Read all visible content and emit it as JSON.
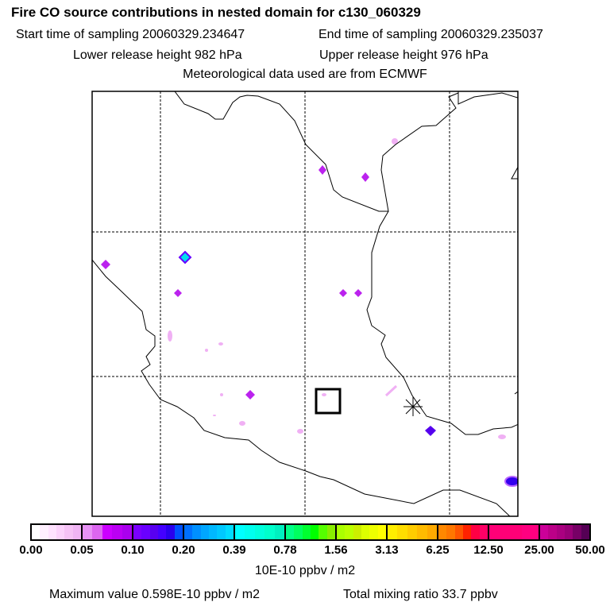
{
  "header": {
    "title": "Fire CO source contributions in nested domain for c130_060329",
    "start": "Start time of sampling 20060329.234647",
    "end": "End time of sampling 20060329.235037",
    "lower": "Lower release height  982 hPa",
    "upper": "Upper release height  976 hPa",
    "met": "Meteorological data used are from ECMWF"
  },
  "colorbar": {
    "ticks": [
      "0.00",
      "0.05",
      "0.10",
      "0.20",
      "0.39",
      "0.78",
      "1.56",
      "3.13",
      "6.25",
      "12.50",
      "25.00",
      "50.00"
    ],
    "segments": [
      [
        "#ffffff",
        "#fff0ff",
        "#ffe2ff",
        "#fcd2fc",
        "#f6c2f6",
        "#f0b4f4"
      ],
      [
        "#e892f6",
        "#dc66f0",
        "#cc00ff",
        "#bb00f4",
        "#aa00ee"
      ],
      [
        "#7a00ff",
        "#6a00ff",
        "#5800f0",
        "#4400ff",
        "#2a00ee",
        "#0050ff"
      ],
      [
        "#0070ff",
        "#0090ff",
        "#00a6ff",
        "#00b8ff",
        "#00c8ff",
        "#00dcff"
      ],
      [
        "#00ffff",
        "#00ffee",
        "#00ffdd",
        "#00ffcc",
        "#00f0c0"
      ],
      [
        "#00ff88",
        "#00ff60",
        "#00ff30",
        "#00ff00",
        "#55ff00",
        "#88ee00"
      ],
      [
        "#aaff00",
        "#bbff00",
        "#ccee00",
        "#ddff00",
        "#eeff00",
        "#ffff00"
      ],
      [
        "#ffee00",
        "#ffdd00",
        "#ffcc00",
        "#ffbb00",
        "#ffaa00"
      ],
      [
        "#ff8800",
        "#ff7700",
        "#ff5500",
        "#ff2200",
        "#ff0044",
        "#ff0066"
      ],
      [
        "#ff0077",
        "#ff0077",
        "#ff0080"
      ],
      [
        "#cc0099",
        "#bb0088",
        "#aa0080",
        "#990077",
        "#770066",
        "#550055"
      ]
    ],
    "units": "10E-10 ppbv / m2"
  },
  "footer": {
    "max": "Maximum value  0.598E-10 ppbv / m2",
    "total": "Total mixing ratio       33.7 ppbv"
  }
}
